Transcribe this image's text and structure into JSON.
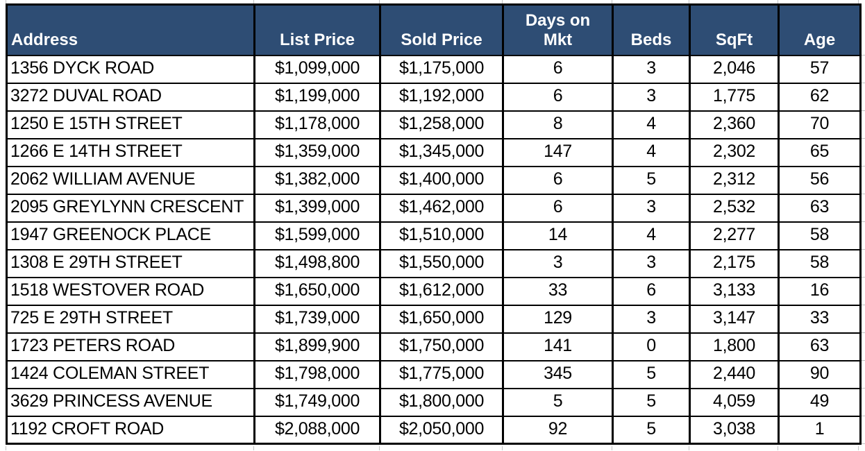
{
  "chart_data": {
    "type": "table",
    "title": "",
    "columns": [
      "Address",
      "List Price",
      "Sold Price",
      "Days on\nMkt",
      "Beds",
      "SqFt",
      "Age"
    ],
    "rows": [
      [
        "1356 DYCK ROAD",
        "$1,099,000",
        "$1,175,000",
        "6",
        "3",
        "2,046",
        "57"
      ],
      [
        "3272 DUVAL ROAD",
        "$1,199,000",
        "$1,192,000",
        "6",
        "3",
        "1,775",
        "62"
      ],
      [
        "1250 E 15TH STREET",
        "$1,178,000",
        "$1,258,000",
        "8",
        "4",
        "2,360",
        "70"
      ],
      [
        "1266 E 14TH STREET",
        "$1,359,000",
        "$1,345,000",
        "147",
        "4",
        "2,302",
        "65"
      ],
      [
        "2062 WILLIAM AVENUE",
        "$1,382,000",
        "$1,400,000",
        "6",
        "5",
        "2,312",
        "56"
      ],
      [
        "2095 GREYLYNN CRESCENT",
        "$1,399,000",
        "$1,462,000",
        "6",
        "3",
        "2,532",
        "63"
      ],
      [
        "1947 GREENOCK PLACE",
        "$1,599,000",
        "$1,510,000",
        "14",
        "4",
        "2,277",
        "58"
      ],
      [
        "1308 E 29TH STREET",
        "$1,498,800",
        "$1,550,000",
        "3",
        "3",
        "2,175",
        "58"
      ],
      [
        "1518 WESTOVER ROAD",
        "$1,650,000",
        "$1,612,000",
        "33",
        "6",
        "3,133",
        "16"
      ],
      [
        "725 E 29TH STREET",
        "$1,739,000",
        "$1,650,000",
        "129",
        "3",
        "3,147",
        "33"
      ],
      [
        "1723 PETERS ROAD",
        "$1,899,900",
        "$1,750,000",
        "141",
        "0",
        "1,800",
        "63"
      ],
      [
        "1424 COLEMAN STREET",
        "$1,798,000",
        "$1,775,000",
        "345",
        "5",
        "2,440",
        "90"
      ],
      [
        "3629 PRINCESS AVENUE",
        "$1,749,000",
        "$1,800,000",
        "5",
        "5",
        "4,059",
        "49"
      ],
      [
        "1192 CROFT ROAD",
        "$2,088,000",
        "$2,050,000",
        "92",
        "5",
        "3,038",
        "1"
      ]
    ]
  },
  "colors": {
    "header_bg": "#2E4D74",
    "header_text": "#FFFFFF",
    "grid_border": "#000000"
  }
}
